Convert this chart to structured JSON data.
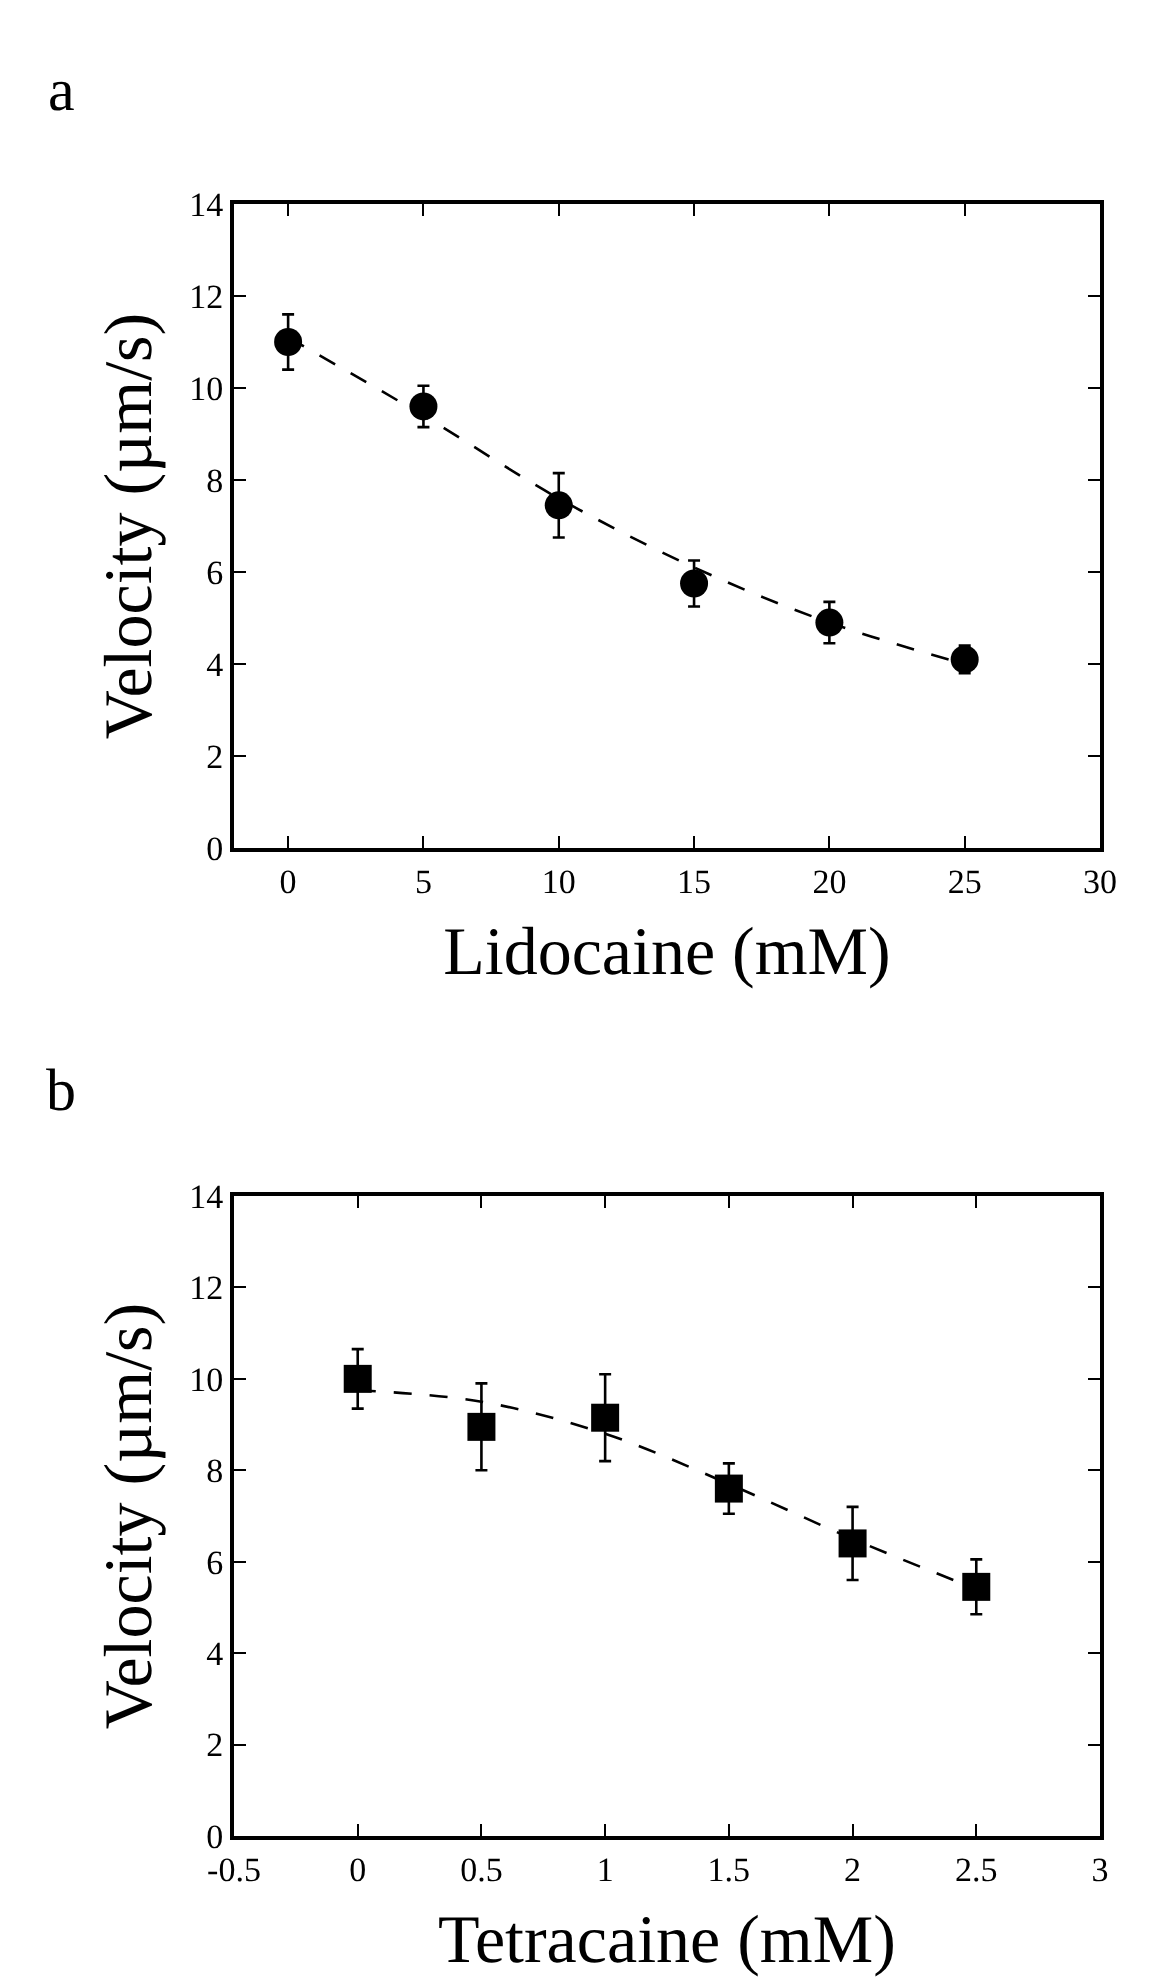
{
  "chart_data": [
    {
      "type": "scatter",
      "annotations": [
        "a"
      ],
      "xlabel": "Lidocaine (mM)",
      "ylabel": "Velocity (µm/s)",
      "xlim": [
        -2,
        30
      ],
      "xticks": [
        0,
        5,
        10,
        15,
        20,
        25,
        30
      ],
      "ylim": [
        0,
        14
      ],
      "yticks": [
        0,
        2,
        4,
        6,
        8,
        10,
        12,
        14
      ],
      "series": [
        {
          "marker": "circle",
          "color": "#000000",
          "x": [
            0,
            5,
            10,
            15,
            20,
            25
          ],
          "values": [
            11.0,
            9.6,
            7.45,
            5.75,
            4.9,
            4.1
          ],
          "errors": [
            0.6,
            0.45,
            0.7,
            0.5,
            0.45,
            0.3
          ]
        },
        {
          "type": "line",
          "marker": "none",
          "line_style": "dashed",
          "color": "#000000",
          "x": [
            0,
            5,
            10,
            15,
            20,
            25
          ],
          "values": [
            11.1,
            9.4,
            7.6,
            6.1,
            4.9,
            4.0
          ]
        }
      ]
    },
    {
      "type": "scatter",
      "annotations": [
        "b"
      ],
      "xlabel": "Tetracaine (mM)",
      "ylabel": "Velocity (µm/s)",
      "xlim": [
        -0.5,
        3
      ],
      "xticks": [
        -0.5,
        0,
        0.5,
        1,
        1.5,
        2,
        2.5,
        3
      ],
      "ylim": [
        0,
        14
      ],
      "yticks": [
        0,
        2,
        4,
        6,
        8,
        10,
        12,
        14
      ],
      "series": [
        {
          "marker": "square",
          "color": "#000000",
          "x": [
            0,
            0.5,
            1,
            1.5,
            2,
            2.5
          ],
          "values": [
            10.0,
            8.95,
            9.15,
            7.6,
            6.4,
            5.45
          ],
          "errors": [
            0.65,
            0.95,
            0.95,
            0.55,
            0.8,
            0.6
          ]
        },
        {
          "type": "line",
          "marker": "none",
          "line_style": "dashed",
          "color": "#000000",
          "x": [
            0,
            0.5,
            1,
            1.5,
            2,
            2.5
          ],
          "values": [
            9.75,
            9.5,
            8.8,
            7.7,
            6.5,
            5.4
          ]
        }
      ]
    }
  ]
}
